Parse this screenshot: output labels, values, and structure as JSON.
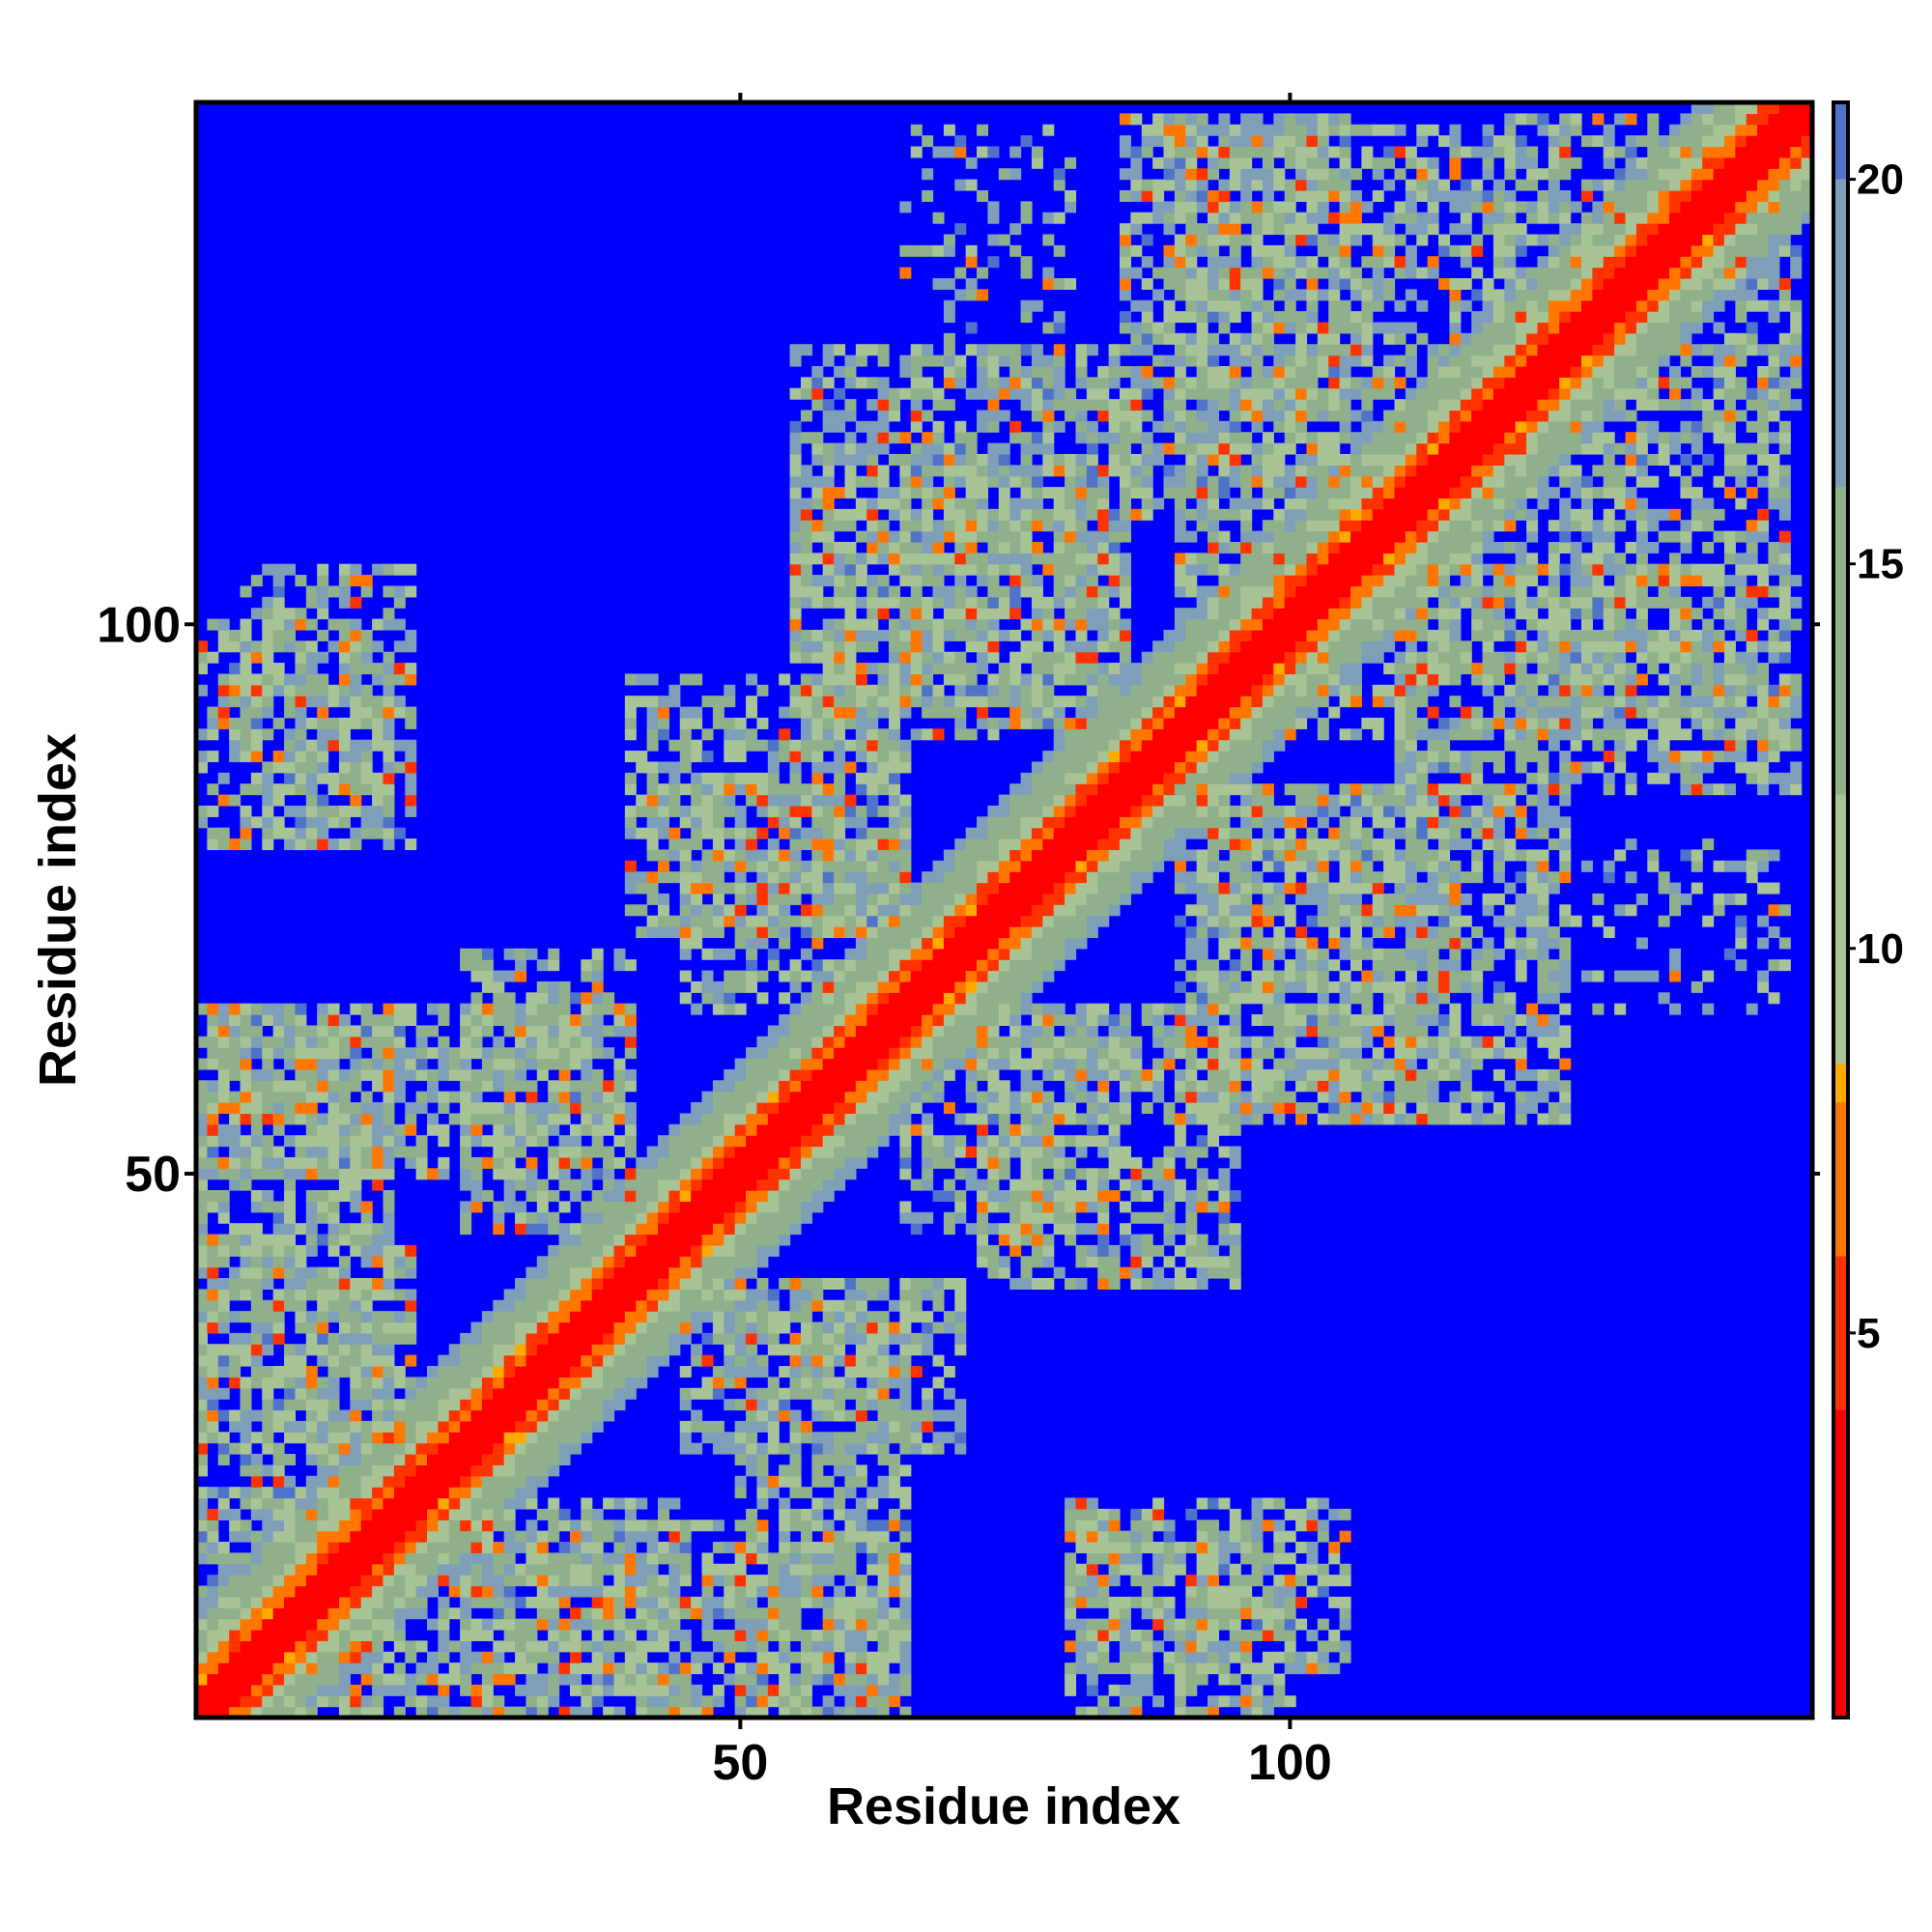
{
  "chart_data": {
    "type": "heatmap",
    "title": "",
    "xlabel": "Residue index",
    "ylabel": "Residue index",
    "n_residues": 147,
    "xlim": [
      0.5,
      147.5
    ],
    "ylim": [
      0.5,
      147.5
    ],
    "x_ticks": [
      50,
      100
    ],
    "y_ticks": [
      50,
      100
    ],
    "colorbar": {
      "ticks": [
        5,
        10,
        15,
        20
      ],
      "range": [
        0,
        21
      ],
      "stops": [
        {
          "value": 0,
          "color": "#ff0000"
        },
        {
          "value": 4,
          "color": "#ff3300"
        },
        {
          "value": 6,
          "color": "#ff7700"
        },
        {
          "value": 8,
          "color": "#ffaa00"
        },
        {
          "value": 8.5,
          "color": "#a8c496"
        },
        {
          "value": 12,
          "color": "#90b08c"
        },
        {
          "value": 16,
          "color": "#7f9fb8"
        },
        {
          "value": 20,
          "color": "#4f73c8"
        },
        {
          "value": 21,
          "color": "#0000ff"
        }
      ]
    },
    "background_color": "#0000ff",
    "diagonal_band": {
      "core_halfwidth": 2,
      "orange_halfwidth": 4,
      "green_halfwidth": 10
    },
    "contact_blocks": [
      {
        "x": [
          1,
          20
        ],
        "y": [
          1,
          20
        ],
        "density": 0.65
      },
      {
        "x": [
          1,
          20
        ],
        "y": [
          25,
          45
        ],
        "density": 0.6
      },
      {
        "x": [
          1,
          40
        ],
        "y": [
          50,
          65
        ],
        "density": 0.6
      },
      {
        "x": [
          1,
          18
        ],
        "y": [
          80,
          100
        ],
        "density": 0.55
      },
      {
        "x": [
          20,
          65
        ],
        "y": [
          1,
          18
        ],
        "density": 0.6
      },
      {
        "x": [
          45,
          70
        ],
        "y": [
          25,
          40
        ],
        "density": 0.6
      },
      {
        "x": [
          40,
          65
        ],
        "y": [
          72,
          95
        ],
        "density": 0.6
      },
      {
        "x": [
          55,
          85
        ],
        "y": [
          92,
          115
        ],
        "density": 0.6
      },
      {
        "x": [
          65,
          85
        ],
        "y": [
          45,
          65
        ],
        "density": 0.6
      },
      {
        "x": [
          80,
          105
        ],
        "y": [
          5,
          20
        ],
        "density": 0.55
      },
      {
        "x": [
          85,
          105
        ],
        "y": [
          110,
          146
        ],
        "density": 0.6
      },
      {
        "x": [
          90,
          125
        ],
        "y": [
          55,
          85
        ],
        "density": 0.6
      },
      {
        "x": [
          100,
          145
        ],
        "y": [
          90,
          120
        ],
        "density": 0.6
      },
      {
        "x": [
          120,
          146
        ],
        "y": [
          120,
          146
        ],
        "density": 0.6
      },
      {
        "x": [
          125,
          145
        ],
        "y": [
          65,
          80
        ],
        "density": 0.25
      }
    ]
  }
}
